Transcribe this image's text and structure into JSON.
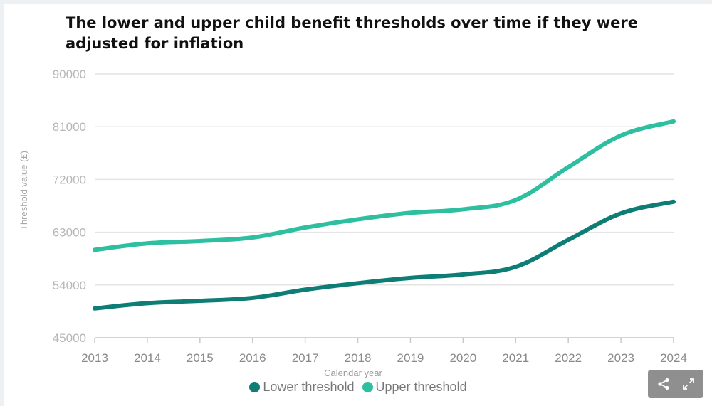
{
  "chart_data": {
    "type": "line",
    "title": "The lower and upper child benefit thresholds over time if they were adjusted for inflation",
    "xlabel": "Calendar year",
    "ylabel": "Threshold value (£)",
    "x": [
      2013,
      2014,
      2015,
      2016,
      2017,
      2018,
      2019,
      2020,
      2021,
      2022,
      2023,
      2024
    ],
    "x_tick_labels": [
      "2013",
      "2014",
      "2015",
      "2016",
      "2017",
      "2018",
      "2019",
      "2020",
      "2021",
      "2022",
      "2023",
      "2024"
    ],
    "y_ticks": [
      45000,
      54000,
      63000,
      72000,
      81000,
      90000
    ],
    "y_tick_labels": [
      "45000",
      "54000",
      "63000",
      "72000",
      "81000",
      "90000"
    ],
    "ylim": [
      45000,
      90000
    ],
    "xlim": [
      2013,
      2024
    ],
    "grid": true,
    "legend_position": "bottom-center",
    "series": [
      {
        "name": "Lower threshold",
        "color": "#0e7d76",
        "values": [
          50000,
          50900,
          51300,
          51800,
          53200,
          54300,
          55200,
          55800,
          57100,
          61700,
          66200,
          68200
        ]
      },
      {
        "name": "Upper threshold",
        "color": "#2dbf9f",
        "values": [
          60000,
          61100,
          61500,
          62100,
          63800,
          65200,
          66300,
          66900,
          68500,
          74100,
          79500,
          81900
        ]
      }
    ]
  },
  "toolbar": {
    "share_icon": "share-icon",
    "expand_icon": "expand-icon"
  }
}
